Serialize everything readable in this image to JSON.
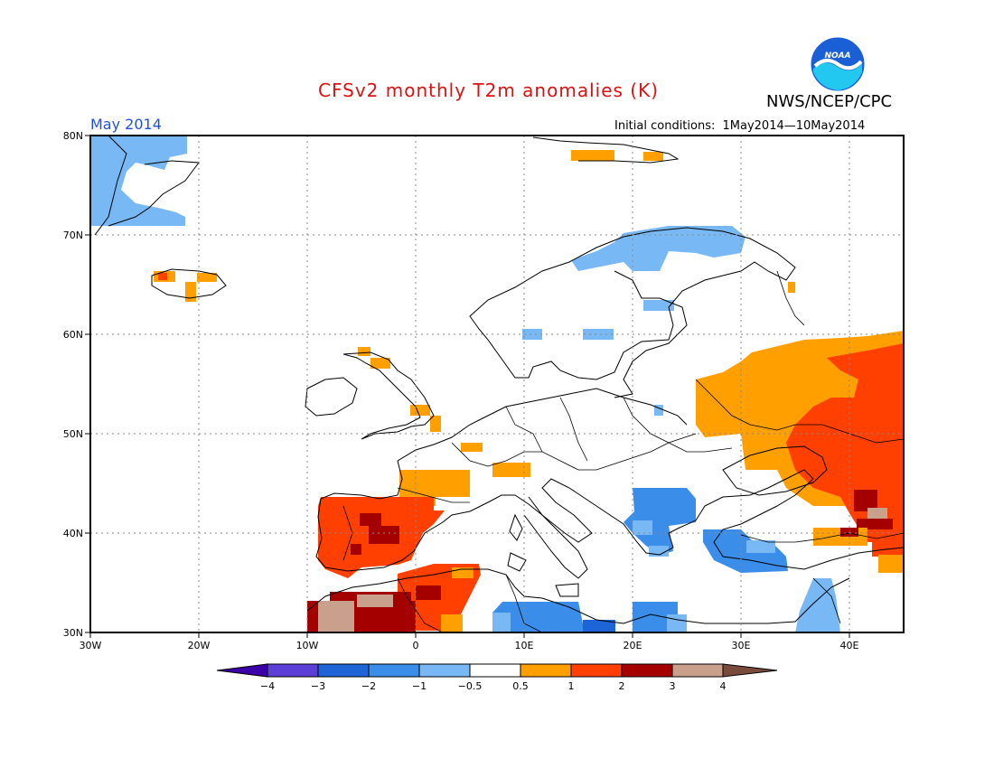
{
  "header": {
    "title": "CFSv2 monthly T2m anomalies (K)",
    "period": "May 2014",
    "agency": "NWS/NCEP/CPC",
    "initial_conditions_label": "Initial conditions:",
    "initial_conditions_value": "1May2014—10May2014",
    "logo_text": "NOAA"
  },
  "map": {
    "region": "Europe",
    "lon_range": [
      -30,
      45
    ],
    "lat_range": [
      30,
      80
    ],
    "lon_ticks": [
      "30W",
      "20W",
      "10W",
      "0",
      "10E",
      "20E",
      "30E",
      "40E"
    ],
    "lat_ticks": [
      "30N",
      "40N",
      "50N",
      "60N",
      "70N",
      "80N"
    ],
    "gridlines": true
  },
  "legend": {
    "labels": [
      "−4",
      "−3",
      "−2",
      "−1",
      "−0.5",
      "0.5",
      "1",
      "2",
      "3",
      "4"
    ],
    "colors": [
      "#3c00a8",
      "#5b3fd6",
      "#1d64d6",
      "#3a8eea",
      "#78b8f4",
      "#ffffff",
      "#ffa000",
      "#ff4000",
      "#a50000",
      "#c8a08c",
      "#7a4a3c"
    ]
  },
  "anomaly_regions": [
    {
      "name": "greenland-cold",
      "level": -1,
      "color": "#78b8f4"
    },
    {
      "name": "svalbard-warm",
      "level": 1,
      "color": "#ffa000"
    },
    {
      "name": "iceland-warm",
      "level": 1,
      "color": "#ffa000"
    },
    {
      "name": "scandinavia-cold",
      "level": -1,
      "color": "#78b8f4"
    },
    {
      "name": "russia-warm",
      "level": 1,
      "color": "#ffa000"
    },
    {
      "name": "russia-very-warm",
      "level": 2,
      "color": "#ff4000"
    },
    {
      "name": "iberia-warm",
      "level": 2,
      "color": "#ff4000"
    },
    {
      "name": "north-africa-hot",
      "level": 3,
      "color": "#a50000"
    },
    {
      "name": "balkans-cold",
      "level": -1,
      "color": "#3a8eea"
    },
    {
      "name": "turkey-cold",
      "level": -1,
      "color": "#3a8eea"
    },
    {
      "name": "libya-cold",
      "level": -1,
      "color": "#3a8eea"
    }
  ]
}
